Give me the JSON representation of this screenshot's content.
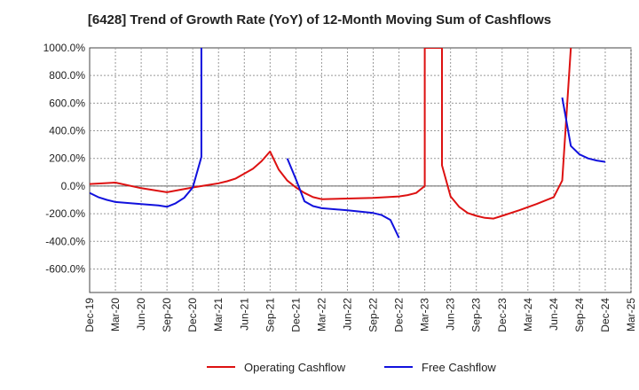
{
  "chart_data": {
    "type": "line",
    "title": "[6428]  Trend of Growth Rate (YoY) of 12-Month Moving Sum of Cashflows",
    "xlabel": "",
    "ylabel": "",
    "x_tick_labels": [
      "Dec-19",
      "Mar-20",
      "Jun-20",
      "Sep-20",
      "Dec-20",
      "Mar-21",
      "Jun-21",
      "Sep-21",
      "Dec-21",
      "Mar-22",
      "Jun-22",
      "Sep-22",
      "Dec-22",
      "Mar-23",
      "Jun-23",
      "Sep-23",
      "Dec-23",
      "Mar-24",
      "Jun-24",
      "Sep-24",
      "Dec-24",
      "Mar-25"
    ],
    "y_tick_labels": [
      "1000.0%",
      "800.0%",
      "600.0%",
      "400.0%",
      "200.0%",
      "0.0%",
      "-200.0%",
      "-400.0%",
      "-600.0%"
    ],
    "ylim": [
      -770,
      1000
    ],
    "grid": true,
    "legend_position": "bottom",
    "series": [
      {
        "name": "Operating Cashflow",
        "color": "#dd1111",
        "points": [
          [
            0,
            15
          ],
          [
            3,
            25
          ],
          [
            6,
            -15
          ],
          [
            9,
            -45
          ],
          [
            12,
            -10
          ],
          [
            14,
            10
          ],
          [
            15,
            20
          ],
          [
            16,
            35
          ],
          [
            17,
            55
          ],
          [
            18,
            90
          ],
          [
            19,
            125
          ],
          [
            20,
            180
          ],
          [
            21,
            250
          ],
          [
            22,
            120
          ],
          [
            23,
            40
          ],
          [
            24,
            -10
          ],
          [
            25,
            -50
          ],
          [
            26,
            -80
          ],
          [
            27,
            -95
          ],
          [
            30,
            -90
          ],
          [
            33,
            -85
          ],
          [
            36,
            -75
          ],
          [
            37,
            -65
          ],
          [
            38,
            -50
          ],
          [
            39,
            0
          ],
          [
            39,
            1000
          ],
          [
            41,
            1000
          ],
          [
            41,
            150
          ],
          [
            42,
            -75
          ],
          [
            43,
            -150
          ],
          [
            44,
            -195
          ],
          [
            45,
            -215
          ],
          [
            46,
            -230
          ],
          [
            47,
            -235
          ],
          [
            48,
            -215
          ],
          [
            50,
            -175
          ],
          [
            52,
            -130
          ],
          [
            54,
            -80
          ],
          [
            55,
            40
          ],
          [
            56,
            1000
          ]
        ]
      },
      {
        "name": "Free Cashflow",
        "color": "#1111dd",
        "points": [
          [
            0,
            -50
          ],
          [
            1,
            -80
          ],
          [
            2,
            -100
          ],
          [
            3,
            -115
          ],
          [
            6,
            -130
          ],
          [
            8,
            -140
          ],
          [
            9,
            -150
          ],
          [
            10,
            -125
          ],
          [
            11,
            -85
          ],
          [
            12,
            -10
          ],
          [
            13,
            210
          ],
          [
            13,
            1000
          ],
          null,
          [
            23,
            200
          ],
          [
            24,
            50
          ],
          [
            25,
            -110
          ],
          [
            26,
            -145
          ],
          [
            27,
            -160
          ],
          [
            30,
            -175
          ],
          [
            33,
            -195
          ],
          [
            34,
            -210
          ],
          [
            35,
            -245
          ],
          [
            36,
            -375
          ],
          null,
          [
            55,
            640
          ],
          [
            56,
            290
          ],
          [
            57,
            230
          ],
          [
            58,
            200
          ],
          [
            59,
            185
          ],
          [
            60,
            175
          ]
        ]
      }
    ],
    "x_axis_unit": "months since Dec-19"
  }
}
